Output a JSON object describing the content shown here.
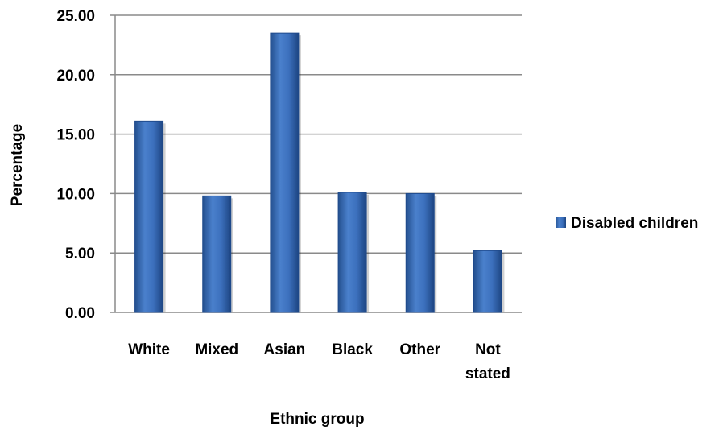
{
  "chart_data": {
    "type": "bar",
    "title": "",
    "xlabel": "Ethnic group",
    "ylabel": "Percentage",
    "categories": [
      "White",
      "Mixed",
      "Asian",
      "Black",
      "Other",
      "Not stated"
    ],
    "series": [
      {
        "name": "Disabled children",
        "values": [
          16.1,
          9.8,
          23.5,
          10.1,
          10.0,
          5.2
        ]
      }
    ],
    "ylim": [
      0,
      25
    ],
    "yticks": [
      "0.00",
      "5.00",
      "10.00",
      "15.00",
      "20.00",
      "25.00"
    ],
    "ytick_values": [
      0,
      5,
      10,
      15,
      20,
      25
    ],
    "grid": true,
    "legend": "right",
    "colors": {
      "bar": "#3a6fbf",
      "bar_dark": "#1f4a8c",
      "grid": "#8a8a8a"
    }
  }
}
